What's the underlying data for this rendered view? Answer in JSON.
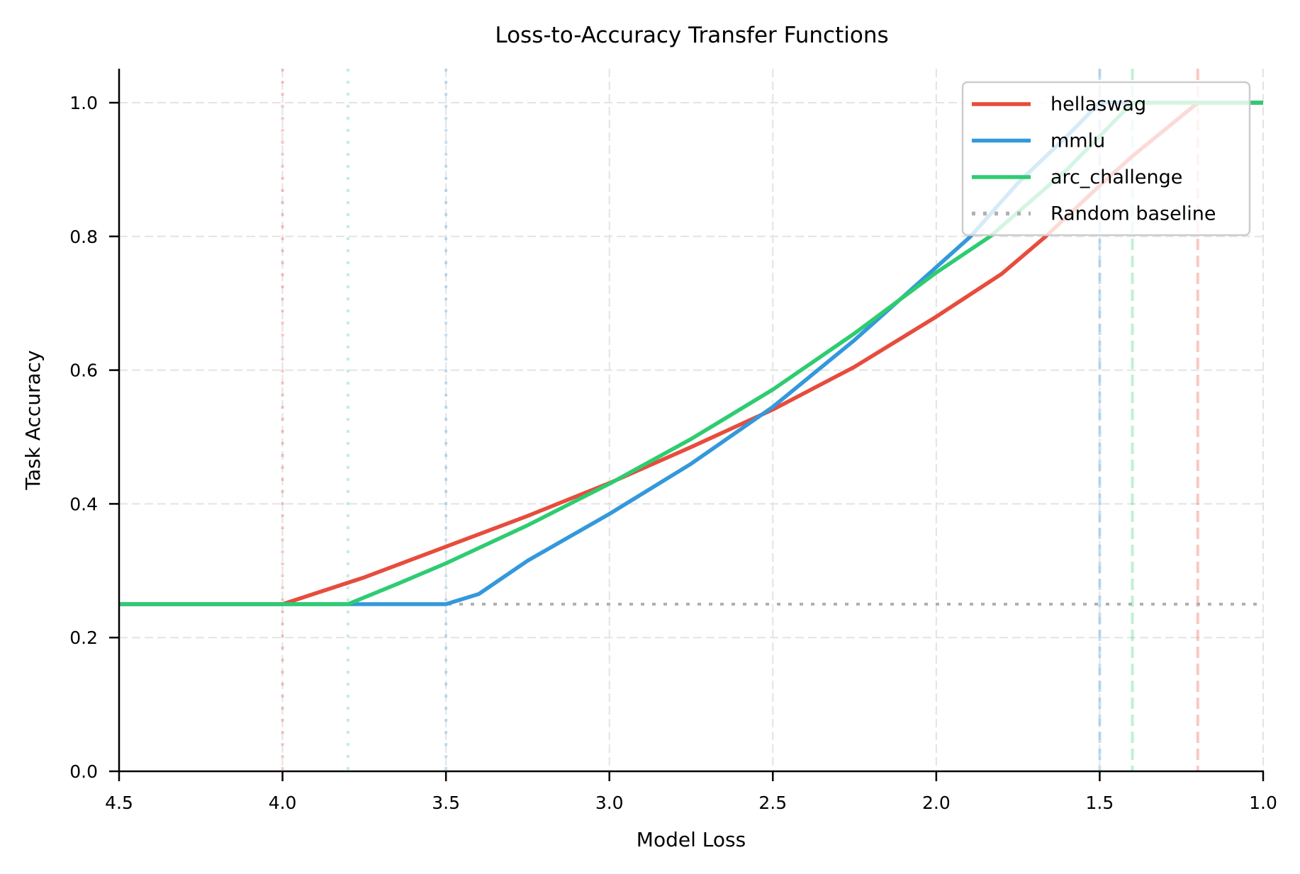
{
  "chart_data": {
    "type": "line",
    "title": "Loss-to-Accuracy Transfer Functions",
    "xlabel": "Model Loss",
    "ylabel": "Task Accuracy",
    "xlim": [
      4.5,
      1.0
    ],
    "ylim": [
      0.0,
      1.05
    ],
    "x_inverted": true,
    "grid": true,
    "legend_position": "upper right",
    "xticks": [
      4.5,
      4.0,
      3.5,
      3.0,
      2.5,
      2.0,
      1.5,
      1.0
    ],
    "xtick_labels": [
      "4.5",
      "4.0",
      "3.5",
      "3.0",
      "2.5",
      "2.0",
      "1.5",
      "1.0"
    ],
    "yticks": [
      0.0,
      0.2,
      0.4,
      0.6,
      0.8,
      1.0
    ],
    "ytick_labels": [
      "0.0",
      "0.2",
      "0.4",
      "0.6",
      "0.8",
      "1.0"
    ],
    "series": [
      {
        "name": "hellaswag",
        "color": "#e74c3c",
        "emergence_loss": 4.0,
        "saturation_loss": 1.2,
        "x": [
          4.5,
          4.0,
          3.75,
          3.5,
          3.25,
          3.0,
          2.75,
          2.5,
          2.25,
          2.0,
          1.8,
          1.665,
          1.5,
          1.4,
          1.3,
          1.2,
          1.0
        ],
        "y": [
          0.25,
          0.25,
          0.29,
          0.336,
          0.382,
          0.431,
          0.485,
          0.541,
          0.605,
          0.68,
          0.744,
          0.8,
          0.876,
          0.92,
          0.96,
          1.0,
          1.0
        ]
      },
      {
        "name": "mmlu",
        "color": "#3498db",
        "emergence_loss": 3.5,
        "saturation_loss": 1.5,
        "x": [
          4.5,
          3.5,
          3.4,
          3.25,
          3.0,
          2.75,
          2.5,
          2.25,
          2.0,
          1.895,
          1.75,
          1.6,
          1.5,
          1.0
        ],
        "y": [
          0.25,
          0.25,
          0.265,
          0.315,
          0.385,
          0.46,
          0.545,
          0.645,
          0.754,
          0.8,
          0.88,
          0.95,
          1.0,
          1.0
        ]
      },
      {
        "name": "arc_challenge",
        "color": "#2ecc71",
        "emergence_loss": 3.8,
        "saturation_loss": 1.4,
        "x": [
          4.5,
          3.8,
          3.65,
          3.5,
          3.25,
          3.0,
          2.75,
          2.5,
          2.25,
          2.0,
          1.835,
          1.6,
          1.4,
          1.0
        ],
        "y": [
          0.25,
          0.25,
          0.28,
          0.311,
          0.368,
          0.43,
          0.497,
          0.571,
          0.655,
          0.746,
          0.8,
          0.9,
          1.0,
          1.0
        ]
      }
    ],
    "baseline": {
      "name": "Random baseline",
      "value": 0.25,
      "color": "#b0b0b0",
      "style": "dotted"
    },
    "vertical_markers": [
      {
        "series": "hellaswag",
        "x": 4.0,
        "style": "dotted",
        "meaning": "emergence"
      },
      {
        "series": "arc_challenge",
        "x": 3.8,
        "style": "dotted",
        "meaning": "emergence"
      },
      {
        "series": "mmlu",
        "x": 3.5,
        "style": "dotted",
        "meaning": "emergence"
      },
      {
        "series": "mmlu",
        "x": 1.5,
        "style": "dashed",
        "meaning": "saturation"
      },
      {
        "series": "arc_challenge",
        "x": 1.4,
        "style": "dashed",
        "meaning": "saturation"
      },
      {
        "series": "hellaswag",
        "x": 1.2,
        "style": "dashed",
        "meaning": "saturation"
      }
    ]
  },
  "legend": {
    "items": [
      {
        "label": "hellaswag",
        "color": "#e74c3c",
        "style": "solid"
      },
      {
        "label": "mmlu",
        "color": "#3498db",
        "style": "solid"
      },
      {
        "label": "arc_challenge",
        "color": "#2ecc71",
        "style": "solid"
      },
      {
        "label": "Random baseline",
        "color": "#b0b0b0",
        "style": "dotted"
      }
    ]
  }
}
